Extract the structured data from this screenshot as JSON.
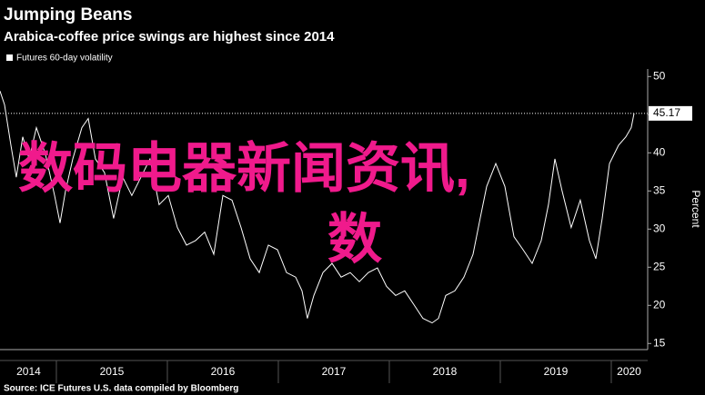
{
  "chart_data": {
    "type": "line",
    "title": "Jumping Beans",
    "subtitle": "Arabica-coffee price swings are highest since 2014",
    "y_axis_label": "Percent",
    "source": "Source: ICE Futures U.S. data compiled by Bloomberg",
    "overlay_text": [
      "数码电器新闻资讯,",
      "数"
    ],
    "x": [
      2014.492,
      2014.533,
      2014.59,
      2014.639,
      2014.697,
      2014.754,
      2014.82,
      2014.902,
      2014.984,
      2015.033,
      2015.082,
      2015.148,
      2015.23,
      2015.287,
      2015.352,
      2015.434,
      2015.516,
      2015.598,
      2015.68,
      2015.762,
      2015.844,
      2015.926,
      2016.008,
      2016.09,
      2016.172,
      2016.254,
      2016.336,
      2016.418,
      2016.5,
      2016.582,
      2016.664,
      2016.746,
      2016.828,
      2016.91,
      2016.992,
      2017.074,
      2017.156,
      2017.213,
      2017.262,
      2017.32,
      2017.402,
      2017.484,
      2017.566,
      2017.648,
      2017.73,
      2017.811,
      2017.893,
      2017.975,
      2018.057,
      2018.139,
      2018.221,
      2018.303,
      2018.385,
      2018.443,
      2018.508,
      2018.59,
      2018.672,
      2018.754,
      2018.82,
      2018.877,
      2018.959,
      2019.041,
      2019.123,
      2019.205,
      2019.287,
      2019.369,
      2019.434,
      2019.492,
      2019.557,
      2019.639,
      2019.721,
      2019.803,
      2019.861,
      2019.918,
      2019.984,
      2020.066,
      2020.131,
      2020.18,
      2020.205
    ],
    "series": [
      {
        "name": "Futures 60-day volatility",
        "color": "#ffffff",
        "values": [
          48.1,
          46.3,
          41,
          36.8,
          42.1,
          39.2,
          43.3,
          39.8,
          34.4,
          30.8,
          35,
          39.2,
          43.3,
          44.5,
          39.2,
          37.4,
          31.4,
          36.8,
          34.4,
          36.8,
          39.2,
          33.2,
          34.4,
          30.2,
          27.9,
          28.5,
          29.6,
          26.7,
          34.4,
          33.8,
          30.2,
          26.1,
          24.3,
          27.9,
          27.3,
          24.3,
          23.7,
          21.9,
          18.3,
          21.3,
          24.3,
          25.5,
          23.7,
          24.3,
          23.1,
          24.3,
          24.9,
          22.5,
          21.3,
          21.9,
          20.1,
          18.3,
          17.7,
          18.3,
          21.3,
          21.9,
          23.7,
          26.7,
          31.5,
          35.6,
          38.6,
          35.6,
          29,
          27.3,
          25.5,
          28.5,
          33.2,
          39.2,
          35,
          30.2,
          33.8,
          28.5,
          26.1,
          31.4,
          38.6,
          41,
          42.1,
          43.3,
          45.17
        ]
      }
    ],
    "last_value": 45.17,
    "xlim": [
      2014.492,
      2020.328
    ],
    "xticks": [
      2015,
      2016,
      2017,
      2018,
      2019,
      2020
    ],
    "year_labels": [
      {
        "value": 2014.75,
        "label": "2014"
      },
      {
        "value": 2015.5,
        "label": "2015"
      },
      {
        "value": 2016.5,
        "label": "2016"
      },
      {
        "value": 2017.5,
        "label": "2017"
      },
      {
        "value": 2018.5,
        "label": "2018"
      },
      {
        "value": 2019.5,
        "label": "2019"
      },
      {
        "value": 2020.16,
        "label": "2020"
      }
    ],
    "ylim": [
      14.2,
      51
    ],
    "yticks": [
      15,
      20,
      25,
      30,
      35,
      40,
      45,
      50
    ]
  }
}
